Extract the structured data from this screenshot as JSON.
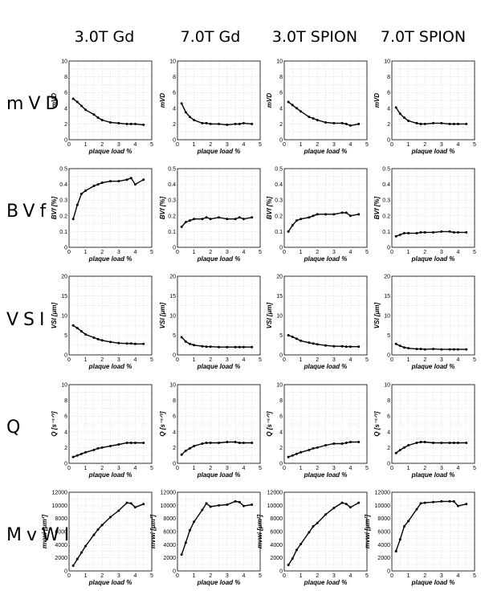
{
  "columns": [
    "3.0T Gd",
    "7.0T Gd",
    "3.0T SPION",
    "7.0T SPION"
  ],
  "rows": [
    "mVD",
    "BVf",
    "VSI",
    "Q",
    "MvWI"
  ],
  "chart_data": [
    {
      "type": "line",
      "title": "",
      "row": "mVD",
      "column": "3.0T Gd",
      "xlabel": "plaque load %",
      "ylabel": "mVD",
      "xlim": [
        0,
        5
      ],
      "ylim": [
        0,
        10
      ],
      "yticks": [
        0,
        2,
        4,
        6,
        8,
        10
      ],
      "x": [
        0.25,
        0.5,
        0.75,
        1.0,
        1.5,
        1.75,
        2.0,
        2.5,
        3.0,
        3.5,
        3.75,
        4.0,
        4.5
      ],
      "y": [
        5.2,
        4.8,
        4.3,
        3.8,
        3.2,
        2.8,
        2.5,
        2.2,
        2.1,
        2.0,
        2.0,
        2.0,
        1.9
      ]
    },
    {
      "type": "line",
      "title": "",
      "row": "mVD",
      "column": "7.0T Gd",
      "xlabel": "plaque load %",
      "ylabel": "mVD",
      "xlim": [
        0,
        5
      ],
      "ylim": [
        0,
        10
      ],
      "yticks": [
        0,
        2,
        4,
        6,
        8,
        10
      ],
      "x": [
        0.25,
        0.5,
        0.75,
        1.0,
        1.5,
        1.75,
        2.0,
        2.5,
        3.0,
        3.5,
        3.75,
        4.0,
        4.5
      ],
      "y": [
        4.6,
        3.5,
        2.9,
        2.5,
        2.1,
        2.1,
        2.0,
        2.0,
        1.9,
        2.0,
        2.0,
        2.1,
        2.0
      ]
    },
    {
      "type": "line",
      "title": "",
      "row": "mVD",
      "column": "3.0T SPION",
      "xlabel": "plaque load %",
      "ylabel": "mVD",
      "xlim": [
        0,
        5
      ],
      "ylim": [
        0,
        10
      ],
      "yticks": [
        0,
        2,
        4,
        6,
        8,
        10
      ],
      "x": [
        0.25,
        0.5,
        0.75,
        1.0,
        1.5,
        1.75,
        2.0,
        2.5,
        3.0,
        3.5,
        3.75,
        4.0,
        4.5
      ],
      "y": [
        4.8,
        4.4,
        4.0,
        3.6,
        2.9,
        2.7,
        2.5,
        2.2,
        2.1,
        2.1,
        2.0,
        1.8,
        2.0
      ]
    },
    {
      "type": "line",
      "title": "",
      "row": "mVD",
      "column": "7.0T SPION",
      "xlabel": "plaque load %",
      "ylabel": "mVD",
      "xlim": [
        0,
        5
      ],
      "ylim": [
        0,
        10
      ],
      "yticks": [
        0,
        2,
        4,
        6,
        8,
        10
      ],
      "x": [
        0.25,
        0.5,
        0.75,
        1.0,
        1.5,
        1.75,
        2.0,
        2.5,
        3.0,
        3.5,
        3.75,
        4.0,
        4.5
      ],
      "y": [
        4.1,
        3.3,
        2.8,
        2.4,
        2.1,
        2.0,
        2.0,
        2.1,
        2.1,
        2.0,
        2.0,
        2.0,
        2.0
      ]
    },
    {
      "type": "line",
      "title": "",
      "row": "BVf",
      "column": "3.0T Gd",
      "xlabel": "plaque load %",
      "ylabel": "BVf [%]",
      "xlim": [
        0,
        5
      ],
      "ylim": [
        0,
        0.5
      ],
      "yticks": [
        0,
        0.1,
        0.2,
        0.3,
        0.4,
        0.5
      ],
      "x": [
        0.25,
        0.5,
        0.75,
        1.0,
        1.5,
        1.75,
        2.0,
        2.5,
        3.0,
        3.5,
        3.75,
        4.0,
        4.5
      ],
      "y": [
        0.18,
        0.27,
        0.34,
        0.36,
        0.39,
        0.4,
        0.41,
        0.42,
        0.42,
        0.43,
        0.44,
        0.4,
        0.43
      ]
    },
    {
      "type": "line",
      "title": "",
      "row": "BVf",
      "column": "7.0T Gd",
      "xlabel": "plaque load %",
      "ylabel": "BVf [%]",
      "xlim": [
        0,
        5
      ],
      "ylim": [
        0,
        0.5
      ],
      "yticks": [
        0,
        0.1,
        0.2,
        0.3,
        0.4,
        0.5
      ],
      "x": [
        0.25,
        0.5,
        0.75,
        1.0,
        1.5,
        1.75,
        2.0,
        2.5,
        3.0,
        3.5,
        3.75,
        4.0,
        4.5
      ],
      "y": [
        0.13,
        0.16,
        0.17,
        0.18,
        0.18,
        0.19,
        0.18,
        0.19,
        0.18,
        0.18,
        0.19,
        0.18,
        0.19
      ]
    },
    {
      "type": "line",
      "title": "",
      "row": "BVf",
      "column": "3.0T SPION",
      "xlabel": "plaque load %",
      "ylabel": "BVf [%]",
      "xlim": [
        0,
        5
      ],
      "ylim": [
        0,
        0.5
      ],
      "yticks": [
        0,
        0.1,
        0.2,
        0.3,
        0.4,
        0.5
      ],
      "x": [
        0.25,
        0.5,
        0.75,
        1.0,
        1.5,
        1.75,
        2.0,
        2.5,
        3.0,
        3.5,
        3.75,
        4.0,
        4.5
      ],
      "y": [
        0.1,
        0.14,
        0.17,
        0.18,
        0.19,
        0.2,
        0.21,
        0.21,
        0.21,
        0.22,
        0.22,
        0.2,
        0.21
      ]
    },
    {
      "type": "line",
      "title": "",
      "row": "BVf",
      "column": "7.0T SPION",
      "xlabel": "plaque load %",
      "ylabel": "BVf [%]",
      "xlim": [
        0,
        5
      ],
      "ylim": [
        0,
        0.5
      ],
      "yticks": [
        0,
        0.1,
        0.2,
        0.3,
        0.4,
        0.5
      ],
      "x": [
        0.25,
        0.5,
        0.75,
        1.0,
        1.5,
        1.75,
        2.0,
        2.5,
        3.0,
        3.5,
        3.75,
        4.0,
        4.5
      ],
      "y": [
        0.07,
        0.08,
        0.09,
        0.09,
        0.09,
        0.095,
        0.095,
        0.095,
        0.1,
        0.1,
        0.095,
        0.095,
        0.095
      ]
    },
    {
      "type": "line",
      "title": "",
      "row": "VSI",
      "column": "3.0T Gd",
      "xlabel": "plaque load %",
      "ylabel": "VSI [μm]",
      "xlim": [
        0,
        5
      ],
      "ylim": [
        0,
        20
      ],
      "yticks": [
        0,
        5,
        10,
        15,
        20
      ],
      "x": [
        0.25,
        0.5,
        0.75,
        1.0,
        1.5,
        1.75,
        2.0,
        2.5,
        3.0,
        3.5,
        3.75,
        4.0,
        4.5
      ],
      "y": [
        7.5,
        6.8,
        6.0,
        5.2,
        4.4,
        4.0,
        3.7,
        3.3,
        3.0,
        2.9,
        2.9,
        2.8,
        2.8
      ]
    },
    {
      "type": "line",
      "title": "",
      "row": "VSI",
      "column": "7.0T Gd",
      "xlabel": "plaque load %",
      "ylabel": "VSI [μm]",
      "xlim": [
        0,
        5
      ],
      "ylim": [
        0,
        20
      ],
      "yticks": [
        0,
        5,
        10,
        15,
        20
      ],
      "x": [
        0.25,
        0.5,
        0.75,
        1.0,
        1.5,
        1.75,
        2.0,
        2.5,
        3.0,
        3.5,
        3.75,
        4.0,
        4.5
      ],
      "y": [
        4.5,
        3.4,
        2.8,
        2.5,
        2.2,
        2.1,
        2.1,
        2.0,
        2.0,
        2.0,
        2.0,
        2.0,
        2.0
      ]
    },
    {
      "type": "line",
      "title": "",
      "row": "VSI",
      "column": "3.0T SPION",
      "xlabel": "plaque load %",
      "ylabel": "VSI [μm]",
      "xlim": [
        0,
        5
      ],
      "ylim": [
        0,
        20
      ],
      "yticks": [
        0,
        5,
        10,
        15,
        20
      ],
      "x": [
        0.25,
        0.5,
        0.75,
        1.0,
        1.5,
        1.75,
        2.0,
        2.5,
        3.0,
        3.5,
        3.75,
        4.0,
        4.5
      ],
      "y": [
        5.0,
        4.6,
        4.1,
        3.6,
        3.1,
        2.9,
        2.7,
        2.4,
        2.2,
        2.2,
        2.1,
        2.1,
        2.1
      ]
    },
    {
      "type": "line",
      "title": "",
      "row": "VSI",
      "column": "7.0T SPION",
      "xlabel": "plaque load %",
      "ylabel": "VSI [μm]",
      "xlim": [
        0,
        5
      ],
      "ylim": [
        0,
        20
      ],
      "yticks": [
        0,
        5,
        10,
        15,
        20
      ],
      "x": [
        0.25,
        0.5,
        0.75,
        1.0,
        1.5,
        1.75,
        2.0,
        2.5,
        3.0,
        3.5,
        3.75,
        4.0,
        4.5
      ],
      "y": [
        2.8,
        2.3,
        1.9,
        1.7,
        1.5,
        1.5,
        1.4,
        1.5,
        1.4,
        1.4,
        1.4,
        1.4,
        1.4
      ]
    },
    {
      "type": "line",
      "title": "",
      "row": "Q",
      "column": "3.0T Gd",
      "xlabel": "plaque load %",
      "ylabel": "Q [s⁻¹ᐟ³]",
      "xlim": [
        0,
        5
      ],
      "ylim": [
        0,
        10
      ],
      "yticks": [
        0,
        2,
        4,
        6,
        8,
        10
      ],
      "x": [
        0.25,
        0.5,
        0.75,
        1.0,
        1.5,
        1.75,
        2.0,
        2.5,
        3.0,
        3.5,
        3.75,
        4.0,
        4.5
      ],
      "y": [
        0.8,
        1.0,
        1.2,
        1.4,
        1.7,
        1.9,
        2.0,
        2.2,
        2.4,
        2.6,
        2.6,
        2.6,
        2.6
      ]
    },
    {
      "type": "line",
      "title": "",
      "row": "Q",
      "column": "7.0T Gd",
      "xlabel": "plaque load %",
      "ylabel": "Q [s⁻¹ᐟ³]",
      "xlim": [
        0,
        5
      ],
      "ylim": [
        0,
        10
      ],
      "yticks": [
        0,
        2,
        4,
        6,
        8,
        10
      ],
      "x": [
        0.25,
        0.5,
        0.75,
        1.0,
        1.5,
        1.75,
        2.0,
        2.5,
        3.0,
        3.5,
        3.75,
        4.0,
        4.5
      ],
      "y": [
        1.1,
        1.6,
        1.9,
        2.2,
        2.5,
        2.6,
        2.6,
        2.6,
        2.7,
        2.7,
        2.6,
        2.6,
        2.6
      ]
    },
    {
      "type": "line",
      "title": "",
      "row": "Q",
      "column": "3.0T SPION",
      "xlabel": "plaque load %",
      "ylabel": "Q [s⁻¹ᐟ³]",
      "xlim": [
        0,
        5
      ],
      "ylim": [
        0,
        10
      ],
      "yticks": [
        0,
        2,
        4,
        6,
        8,
        10
      ],
      "x": [
        0.25,
        0.5,
        0.75,
        1.0,
        1.5,
        1.75,
        2.0,
        2.5,
        3.0,
        3.5,
        3.75,
        4.0,
        4.5
      ],
      "y": [
        0.8,
        1.0,
        1.2,
        1.4,
        1.7,
        1.9,
        2.0,
        2.3,
        2.5,
        2.5,
        2.6,
        2.7,
        2.7
      ]
    },
    {
      "type": "line",
      "title": "",
      "row": "Q",
      "column": "7.0T SPION",
      "xlabel": "plaque load %",
      "ylabel": "Q [s⁻¹ᐟ³]",
      "xlim": [
        0,
        5
      ],
      "ylim": [
        0,
        10
      ],
      "yticks": [
        0,
        2,
        4,
        6,
        8,
        10
      ],
      "x": [
        0.25,
        0.5,
        0.75,
        1.0,
        1.5,
        1.75,
        2.0,
        2.5,
        3.0,
        3.5,
        3.75,
        4.0,
        4.5
      ],
      "y": [
        1.3,
        1.7,
        2.0,
        2.3,
        2.6,
        2.7,
        2.7,
        2.6,
        2.6,
        2.6,
        2.6,
        2.6,
        2.6
      ]
    },
    {
      "type": "line",
      "title": "",
      "row": "MvWI",
      "column": "3.0T Gd",
      "xlabel": "plaque load %",
      "ylabel": "mvwi [μm²]",
      "xlim": [
        0,
        5
      ],
      "ylim": [
        0,
        12000
      ],
      "yticks": [
        0,
        2000,
        4000,
        6000,
        8000,
        10000,
        12000
      ],
      "x": [
        0.25,
        0.5,
        0.75,
        1.0,
        1.5,
        1.75,
        2.0,
        2.5,
        3.0,
        3.5,
        3.75,
        4.0,
        4.5
      ],
      "y": [
        800,
        1800,
        2800,
        3800,
        5500,
        6300,
        7000,
        8200,
        9200,
        10400,
        10300,
        9700,
        10200
      ]
    },
    {
      "type": "line",
      "title": "",
      "row": "MvWI",
      "column": "7.0T Gd",
      "xlabel": "plaque load %",
      "ylabel": "mvwi [μm²]",
      "xlim": [
        0,
        5
      ],
      "ylim": [
        0,
        12000
      ],
      "yticks": [
        0,
        2000,
        4000,
        6000,
        8000,
        10000,
        12000
      ],
      "x": [
        0.25,
        0.5,
        0.75,
        1.0,
        1.5,
        1.75,
        2.0,
        2.5,
        3.0,
        3.5,
        3.75,
        4.0,
        4.5
      ],
      "y": [
        2500,
        4300,
        6200,
        7500,
        9300,
        10300,
        9800,
        10000,
        10100,
        10600,
        10500,
        9900,
        10100
      ]
    },
    {
      "type": "line",
      "title": "",
      "row": "MvWI",
      "column": "3.0T SPION",
      "xlabel": "plaque load %",
      "ylabel": "mvwi [μm²]",
      "xlim": [
        0,
        5
      ],
      "ylim": [
        0,
        12000
      ],
      "yticks": [
        0,
        2000,
        4000,
        6000,
        8000,
        10000,
        12000
      ],
      "x": [
        0.25,
        0.5,
        0.75,
        1.0,
        1.5,
        1.75,
        2.0,
        2.5,
        3.0,
        3.5,
        3.75,
        4.0,
        4.5
      ],
      "y": [
        900,
        1900,
        3200,
        4100,
        5900,
        6800,
        7300,
        8600,
        9600,
        10400,
        10200,
        9700,
        10400
      ]
    },
    {
      "type": "line",
      "title": "",
      "row": "MvWI",
      "column": "7.0T SPION",
      "xlabel": "plaque load %",
      "ylabel": "mvwi [μm²]",
      "xlim": [
        0,
        5
      ],
      "ylim": [
        0,
        12000
      ],
      "yticks": [
        0,
        2000,
        4000,
        6000,
        8000,
        10000,
        12000
      ],
      "x": [
        0.25,
        0.5,
        0.75,
        1.0,
        1.5,
        1.75,
        2.0,
        2.5,
        3.0,
        3.5,
        3.75,
        4.0,
        4.5
      ],
      "y": [
        3000,
        4800,
        6800,
        7600,
        9400,
        10300,
        10400,
        10500,
        10600,
        10600,
        10600,
        9900,
        10200
      ]
    }
  ]
}
